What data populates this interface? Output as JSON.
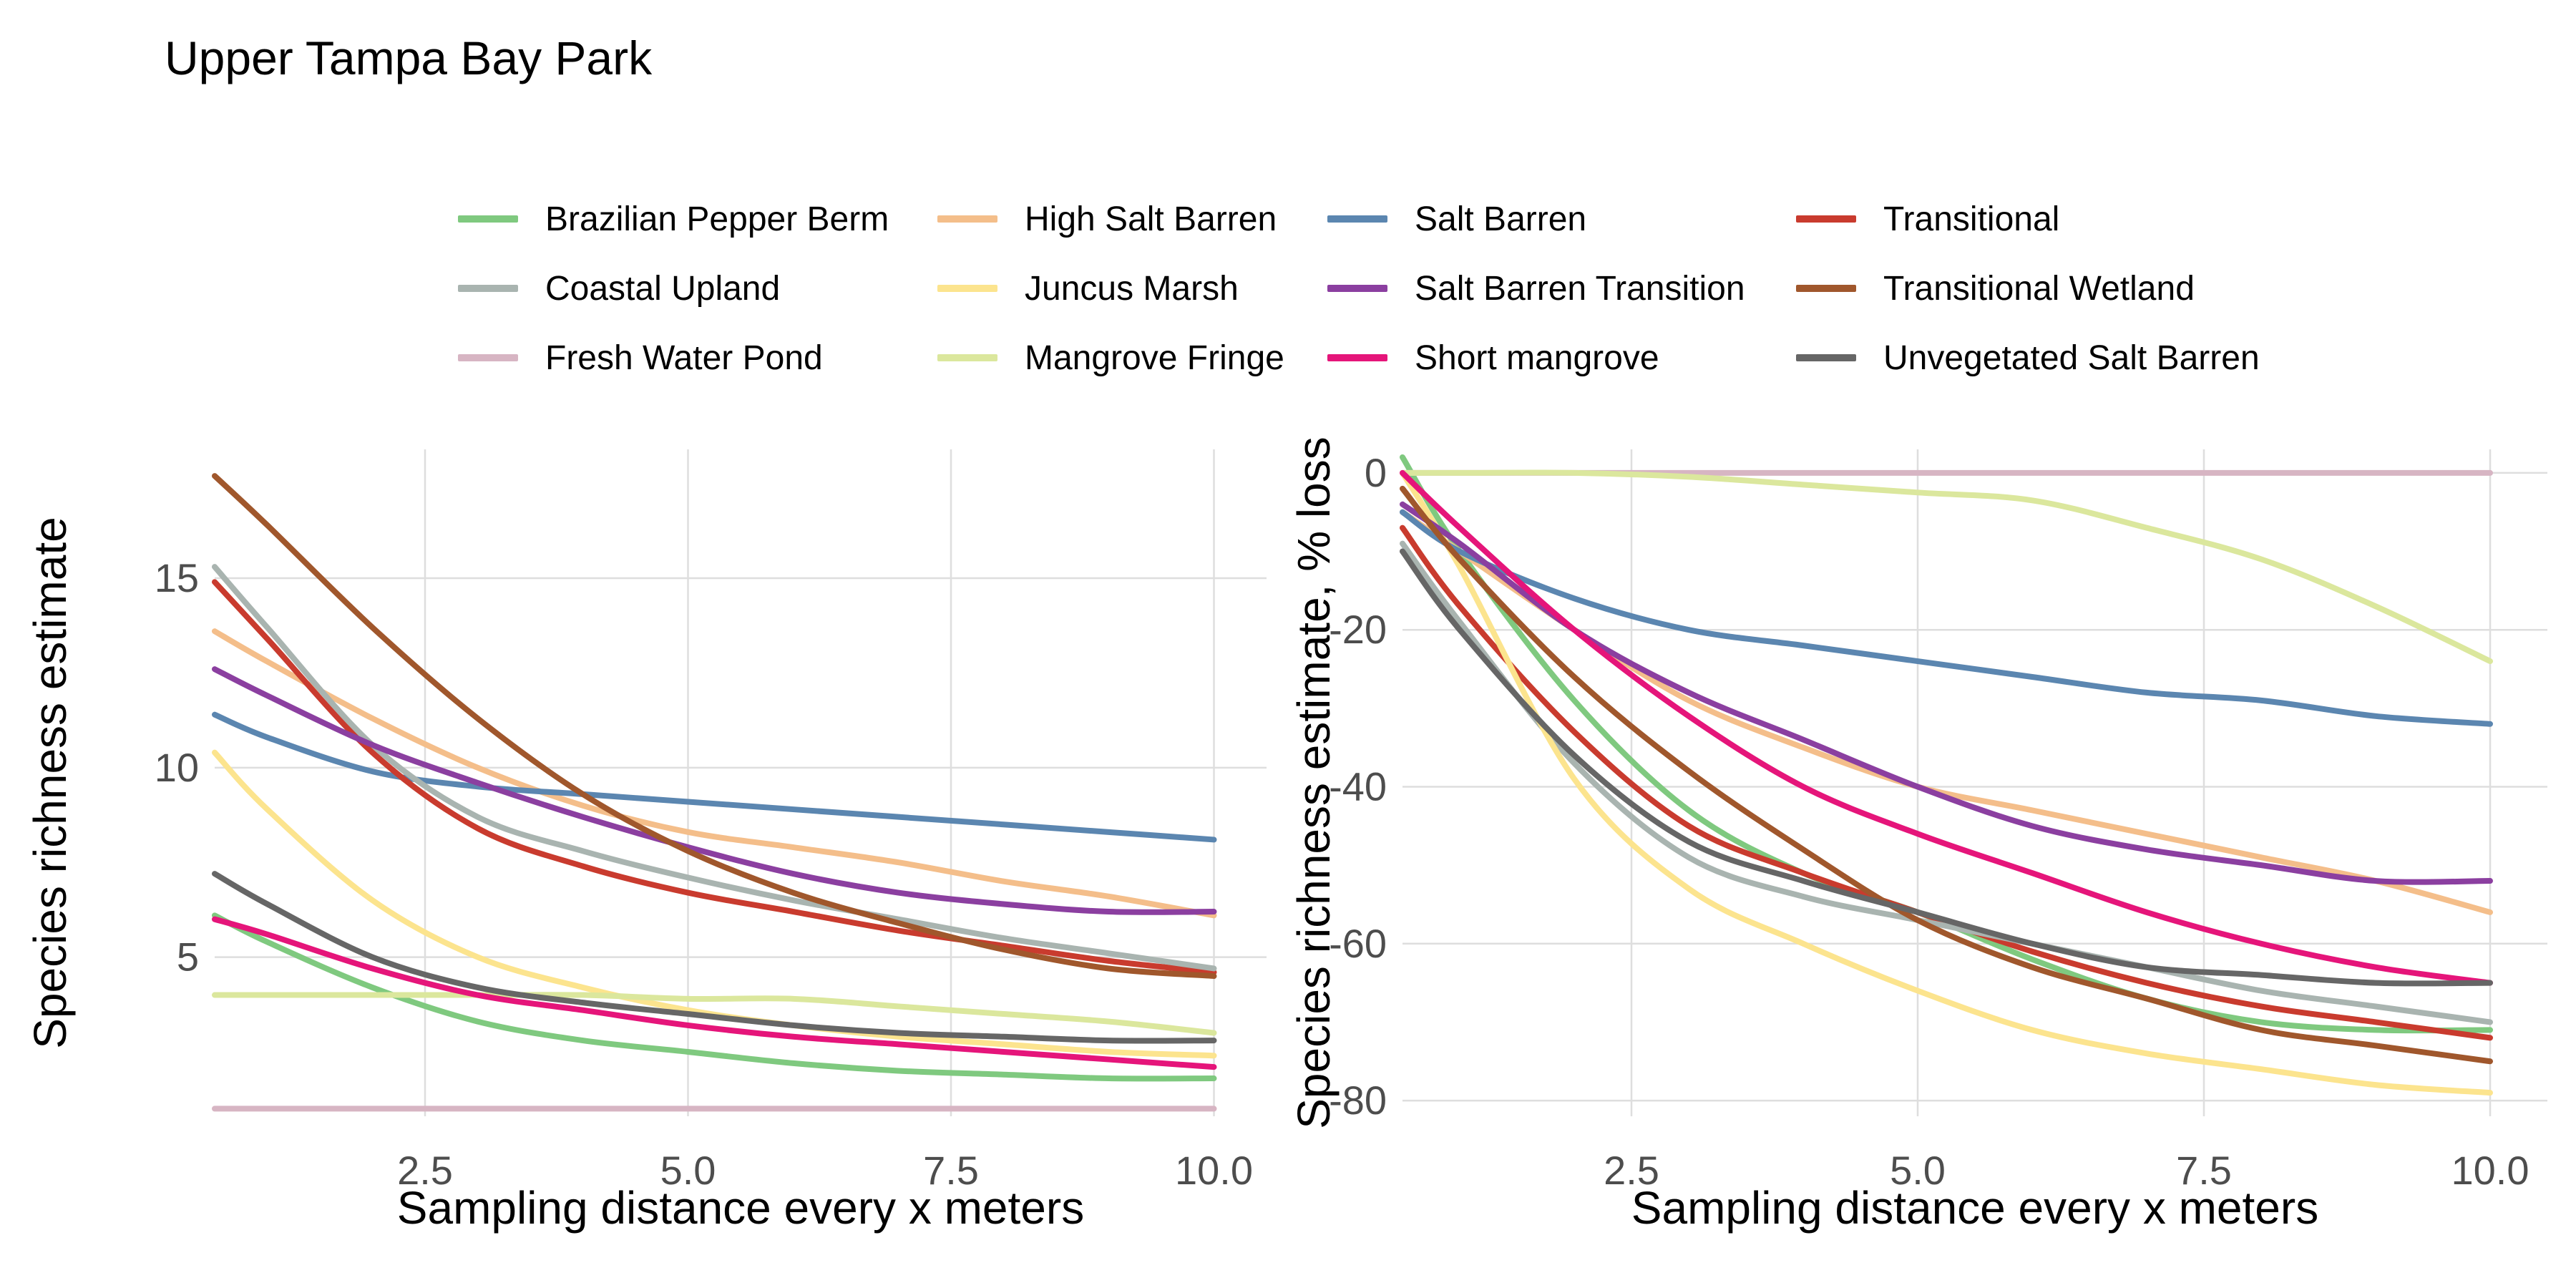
{
  "title": "Upper Tampa Bay Park",
  "legend": {
    "items": [
      {
        "name": "Brazilian Pepper Berm",
        "color": "#7fc97f"
      },
      {
        "name": "High Salt Barren",
        "color": "#f4be8a"
      },
      {
        "name": "Salt Barren",
        "color": "#5b86b0"
      },
      {
        "name": "Transitional",
        "color": "#c93b2e"
      },
      {
        "name": "Coastal Upland",
        "color": "#a9b4b0"
      },
      {
        "name": "Juncus Marsh",
        "color": "#fce48e"
      },
      {
        "name": "Salt Barren Transition",
        "color": "#8b3fa0"
      },
      {
        "name": "Transitional Wetland",
        "color": "#a0572c"
      },
      {
        "name": "Fresh Water Pond",
        "color": "#d7b5c3"
      },
      {
        "name": "Mangrove Fringe",
        "color": "#dbe79d"
      },
      {
        "name": "Short mangrove",
        "color": "#e5157a"
      },
      {
        "name": "Unvegetated Salt Barren",
        "color": "#666666"
      }
    ]
  },
  "chart_data": [
    {
      "type": "line",
      "xlabel": "Sampling distance every x meters",
      "ylabel": "Species richness estimate",
      "xlim": [
        0.5,
        10.5
      ],
      "ylim": [
        0.8,
        18.4
      ],
      "xticks": [
        "2.5",
        "5.0",
        "7.5",
        "10.0"
      ],
      "yticks": [
        "5",
        "10",
        "15"
      ],
      "grid": true,
      "x": [
        0.5,
        1,
        2,
        3,
        4,
        5,
        6,
        7,
        8,
        9,
        10
      ],
      "series": [
        {
          "name": "Brazilian Pepper Berm",
          "values": [
            6.1,
            5.4,
            4.2,
            3.3,
            2.8,
            2.5,
            2.2,
            2.0,
            1.9,
            1.8,
            1.8
          ]
        },
        {
          "name": "High Salt Barren",
          "values": [
            13.6,
            12.8,
            11.3,
            10.0,
            9.0,
            8.3,
            7.9,
            7.5,
            7.0,
            6.6,
            6.1
          ]
        },
        {
          "name": "Salt Barren",
          "values": [
            11.4,
            10.8,
            9.9,
            9.5,
            9.3,
            9.1,
            8.9,
            8.7,
            8.5,
            8.3,
            8.1
          ]
        },
        {
          "name": "Transitional",
          "values": [
            14.9,
            13.4,
            10.4,
            8.4,
            7.4,
            6.7,
            6.2,
            5.7,
            5.3,
            4.9,
            4.6
          ]
        },
        {
          "name": "Coastal Upland",
          "values": [
            15.3,
            13.7,
            10.6,
            8.7,
            7.8,
            7.1,
            6.5,
            6.0,
            5.5,
            5.1,
            4.7
          ]
        },
        {
          "name": "Juncus Marsh",
          "values": [
            10.4,
            8.9,
            6.5,
            5.0,
            4.2,
            3.6,
            3.2,
            2.9,
            2.7,
            2.5,
            2.4
          ]
        },
        {
          "name": "Salt Barren Transition",
          "values": [
            12.6,
            11.9,
            10.6,
            9.6,
            8.7,
            7.9,
            7.2,
            6.7,
            6.4,
            6.2,
            6.2
          ]
        },
        {
          "name": "Transitional Wetland",
          "values": [
            17.7,
            16.4,
            13.7,
            11.3,
            9.3,
            7.8,
            6.7,
            5.9,
            5.2,
            4.7,
            4.5
          ]
        },
        {
          "name": "Fresh Water Pond",
          "values": [
            1.0,
            1.0,
            1.0,
            1.0,
            1.0,
            1.0,
            1.0,
            1.0,
            1.0,
            1.0,
            1.0
          ]
        },
        {
          "name": "Mangrove Fringe",
          "values": [
            4.0,
            4.0,
            4.0,
            4.0,
            4.0,
            3.9,
            3.9,
            3.7,
            3.5,
            3.3,
            3.0
          ]
        },
        {
          "name": "Short mangrove",
          "values": [
            6.0,
            5.6,
            4.7,
            4.0,
            3.6,
            3.2,
            2.9,
            2.7,
            2.5,
            2.3,
            2.1
          ]
        },
        {
          "name": "Unvegetated Salt Barren",
          "values": [
            7.2,
            6.4,
            5.0,
            4.2,
            3.8,
            3.5,
            3.2,
            3.0,
            2.9,
            2.8,
            2.8
          ]
        }
      ]
    },
    {
      "type": "line",
      "xlabel": "Sampling distance every x meters",
      "ylabel": "Species richness estimate, % loss",
      "xlim": [
        0.5,
        10.5
      ],
      "ylim": [
        -82,
        3
      ],
      "xticks": [
        "2.5",
        "5.0",
        "7.5",
        "10.0"
      ],
      "yticks": [
        "0",
        "-20",
        "-40",
        "-60",
        "-80"
      ],
      "grid": true,
      "x": [
        0.5,
        1,
        2,
        3,
        4,
        5,
        6,
        7,
        8,
        9,
        10
      ],
      "series": [
        {
          "name": "Brazilian Pepper Berm",
          "values": [
            2.0,
            -10,
            -29,
            -43,
            -51,
            -56,
            -62,
            -67,
            -70,
            -71,
            -71
          ]
        },
        {
          "name": "High Salt Barren",
          "values": [
            -5,
            -10,
            -20,
            -29,
            -35,
            -40,
            -43,
            -46,
            -49,
            -52,
            -56
          ]
        },
        {
          "name": "Salt Barren",
          "values": [
            -5,
            -10,
            -16,
            -20,
            -22,
            -24,
            -26,
            -28,
            -29,
            -31,
            -32
          ]
        },
        {
          "name": "Transitional",
          "values": [
            -7,
            -17,
            -33,
            -45,
            -51,
            -56,
            -61,
            -65,
            -68,
            -70,
            -72
          ]
        },
        {
          "name": "Coastal Upland",
          "values": [
            -9,
            -19,
            -37,
            -49,
            -54,
            -57,
            -60,
            -63,
            -66,
            -68,
            -70
          ]
        },
        {
          "name": "Juncus Marsh",
          "values": [
            0,
            -12,
            -39,
            -53,
            -60,
            -66,
            -71,
            -74,
            -76,
            -78,
            -79
          ]
        },
        {
          "name": "Salt Barren Transition",
          "values": [
            -4,
            -9,
            -20,
            -28,
            -34,
            -40,
            -45,
            -48,
            -50,
            -52,
            -52
          ]
        },
        {
          "name": "Transitional Wetland",
          "values": [
            -2,
            -11,
            -26,
            -38,
            -48,
            -57,
            -63,
            -67,
            -71,
            -73,
            -75
          ]
        },
        {
          "name": "Fresh Water Pond",
          "values": [
            0,
            0,
            0,
            0,
            0,
            0,
            0,
            0,
            0,
            0,
            0
          ]
        },
        {
          "name": "Mangrove Fringe",
          "values": [
            0,
            0,
            0,
            -0.5,
            -1.5,
            -2.5,
            -3.5,
            -7,
            -11,
            -17,
            -24
          ]
        },
        {
          "name": "Short mangrove",
          "values": [
            0,
            -7,
            -20,
            -31,
            -40,
            -46,
            -51,
            -56,
            -60,
            -63,
            -65
          ]
        },
        {
          "name": "Unvegetated Salt Barren",
          "values": [
            -10,
            -20,
            -36,
            -47,
            -52,
            -56,
            -60,
            -63,
            -64,
            -65,
            -65
          ]
        }
      ]
    }
  ]
}
